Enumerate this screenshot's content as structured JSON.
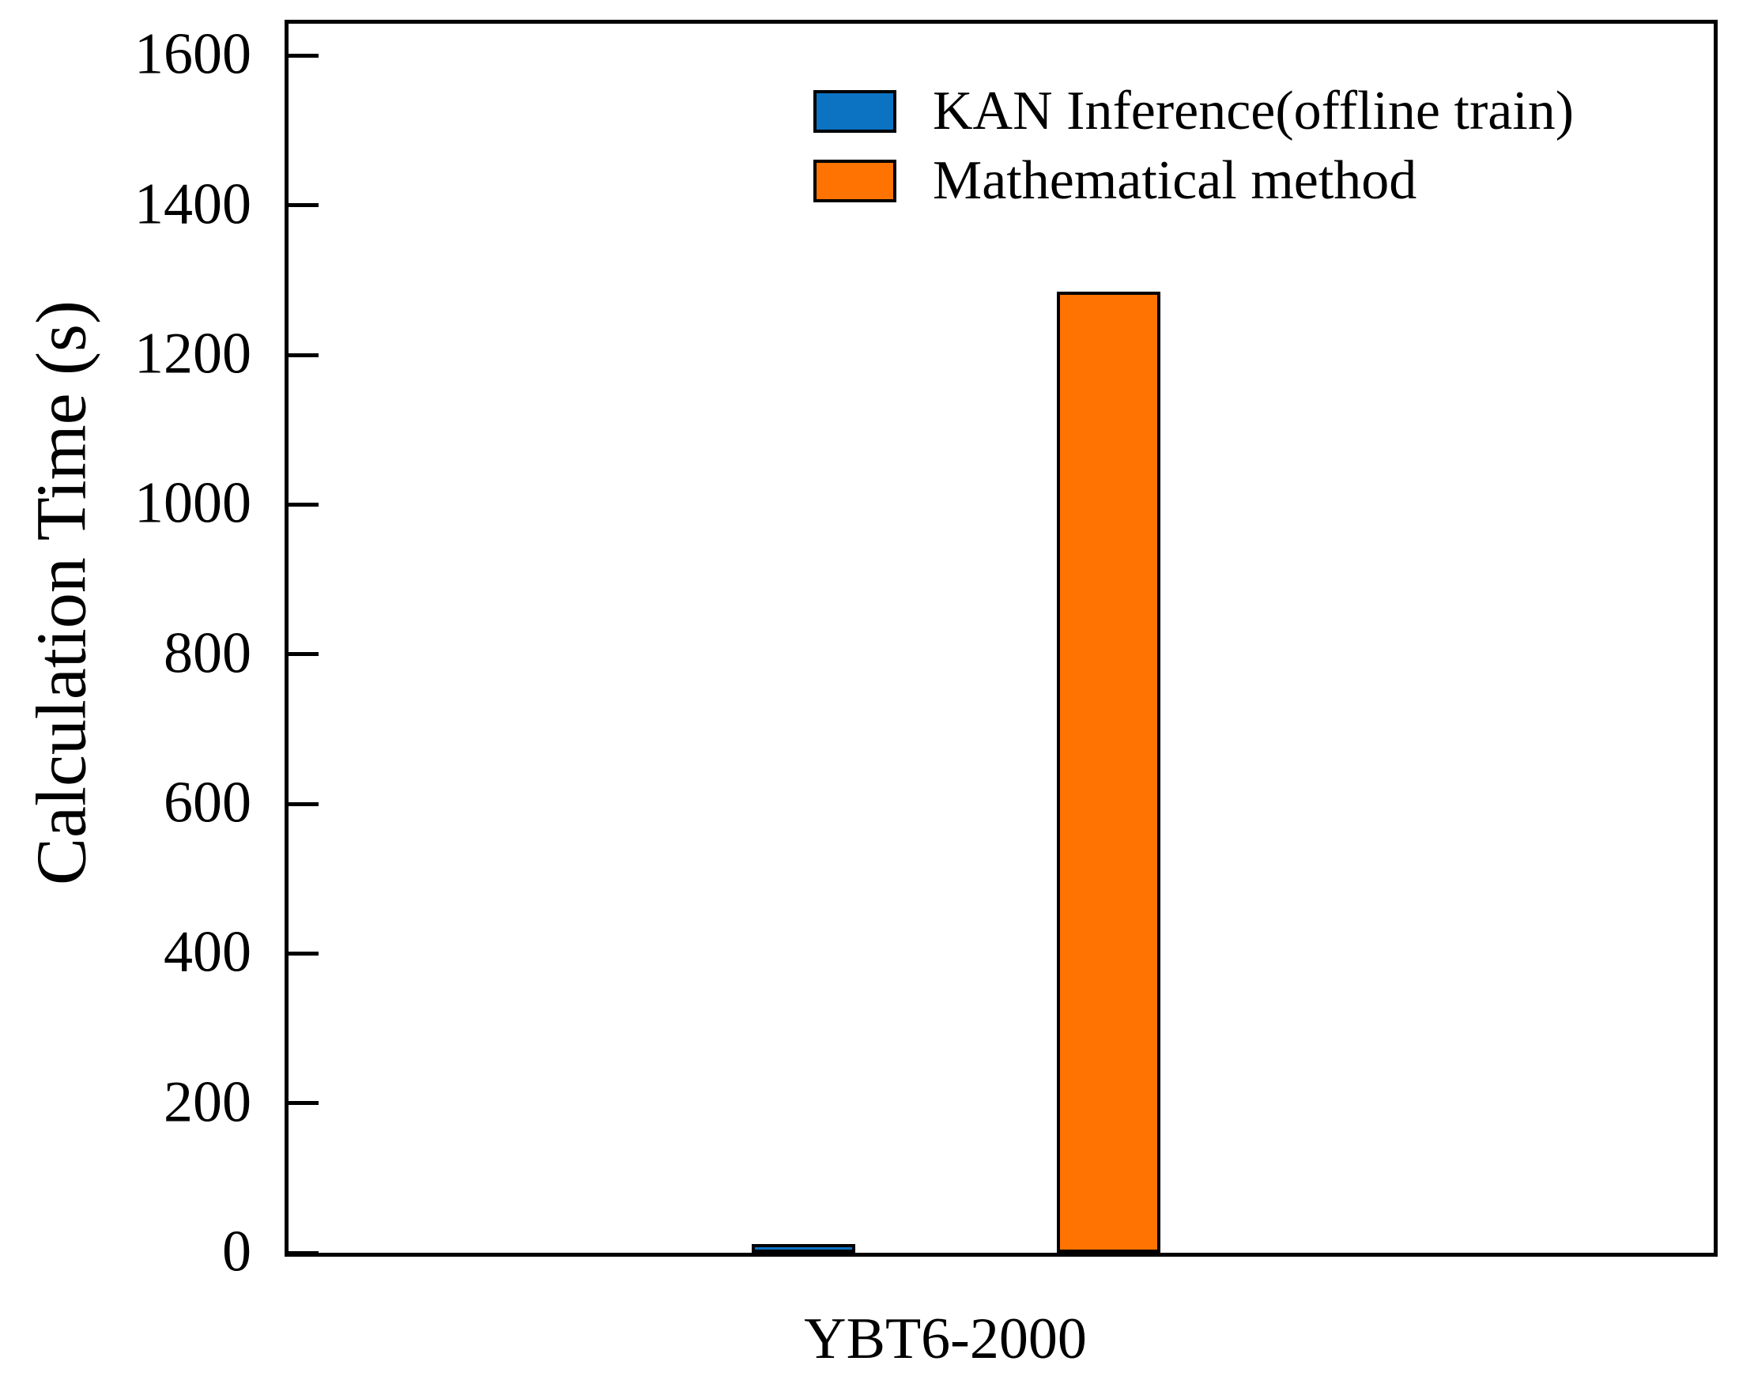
{
  "chart_data": {
    "type": "bar",
    "title": "",
    "categories": [
      "YBT6-2000"
    ],
    "series": [
      {
        "name": "KAN Inference(offline train)",
        "color": "#0C72C2",
        "values": [
          12
        ]
      },
      {
        "name": "Mathematical method",
        "color": "#FF7302",
        "values": [
          1285
        ]
      }
    ],
    "xlabel": "",
    "ylabel": "Calculation Time (s)",
    "ylim": [
      0,
      1646
    ],
    "yticks": [
      0,
      200,
      400,
      600,
      800,
      1000,
      1200,
      1400,
      1600
    ],
    "grid": false,
    "legend_position": "upper center, inside plot, no frame",
    "bar_edge_color": "#000000",
    "axis_color": "#000000",
    "background_color": "#ffffff"
  }
}
